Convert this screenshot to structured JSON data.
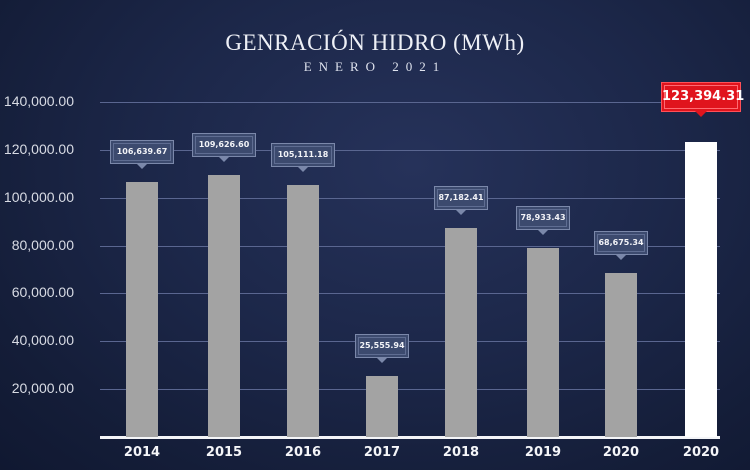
{
  "header": {
    "title": "GENRACIÓN HIDRO (MWh)",
    "subtitle": "ENERO 2021"
  },
  "axis": {
    "y_ticks": [
      "140,000.00",
      "120,000.00",
      "100,000.00",
      "80,000.00",
      "60,000.00",
      "40,000.00",
      "20,000.00"
    ]
  },
  "bars": [
    {
      "year": "2014",
      "label": "106,639.67"
    },
    {
      "year": "2015",
      "label": "109,626.60"
    },
    {
      "year": "2016",
      "label": "105,111.18"
    },
    {
      "year": "2017",
      "label": "25,555.94"
    },
    {
      "year": "2018",
      "label": "87,182.41"
    },
    {
      "year": "2019",
      "label": "78,933.43"
    },
    {
      "year": "2020",
      "label": "68,675.34"
    },
    {
      "year": "2020",
      "label": "123,394.31"
    }
  ],
  "colors": {
    "bar": "#a3a3a3",
    "highlight_bar": "#ffffff",
    "highlight_label": "#e0141d",
    "label_box": "#3c4a6e",
    "background": "#1c2749"
  },
  "chart_data": {
    "type": "bar",
    "title": "GENRACIÓN HIDRO (MWh)",
    "subtitle": "ENERO 2021",
    "xlabel": "",
    "ylabel": "",
    "categories": [
      "2014",
      "2015",
      "2016",
      "2017",
      "2018",
      "2019",
      "2020",
      "2020"
    ],
    "values": [
      106639.67,
      109626.6,
      105111.18,
      25555.94,
      87182.41,
      78933.43,
      68675.34,
      123394.31
    ],
    "highlighted_index": 7,
    "ylim": [
      0,
      140000
    ],
    "y_ticks": [
      20000,
      40000,
      60000,
      80000,
      100000,
      120000,
      140000
    ],
    "grid": true,
    "legend": null
  }
}
